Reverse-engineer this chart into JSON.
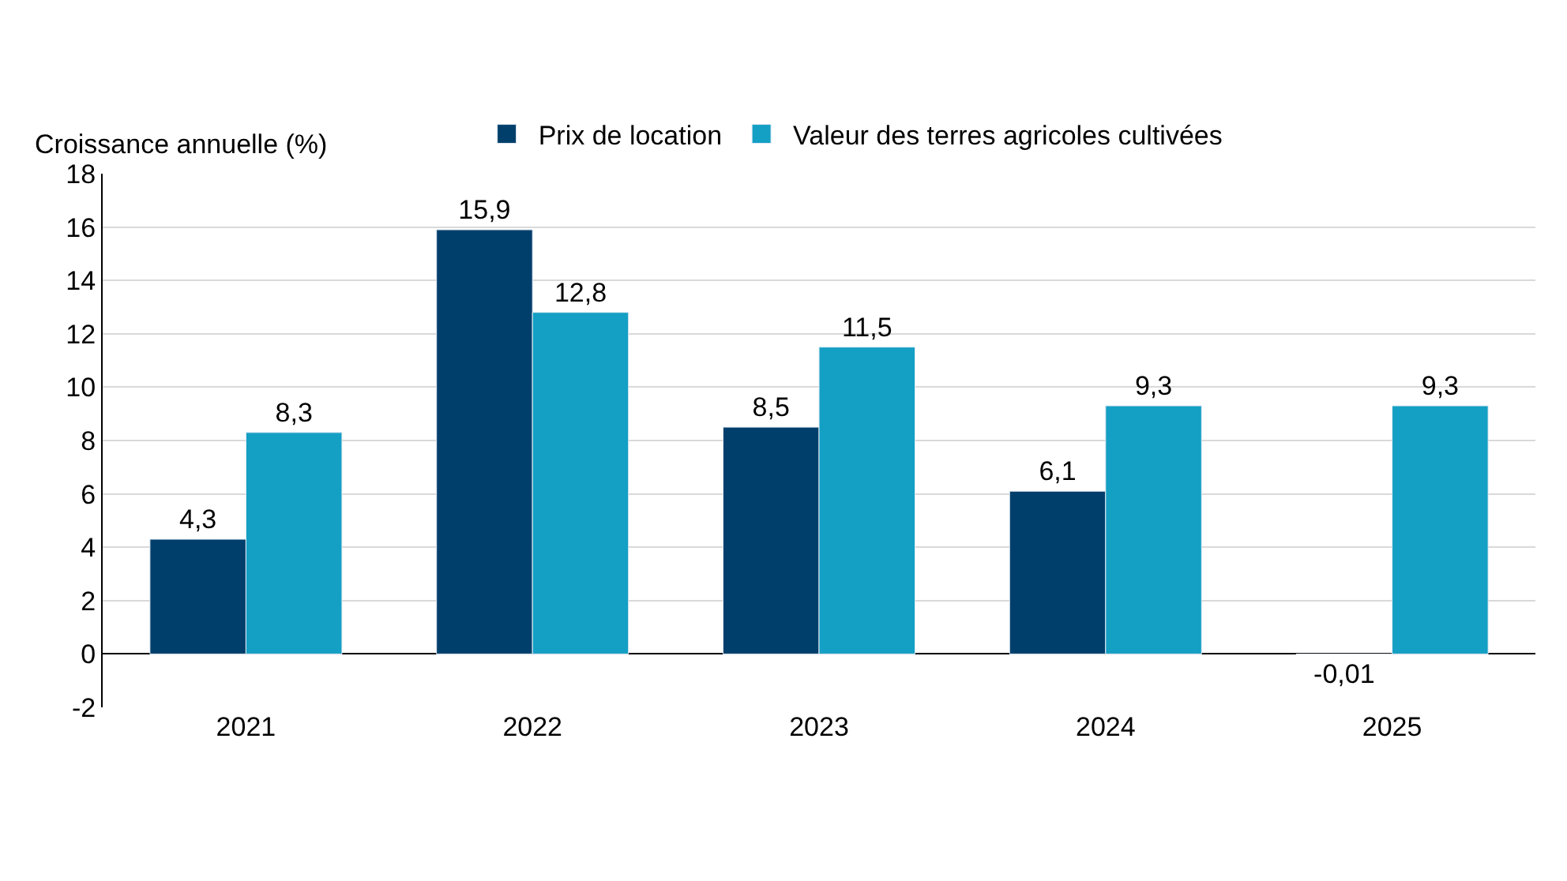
{
  "chart_data": {
    "type": "bar",
    "ylabel": "Croissance annuelle (%)",
    "categories": [
      "2021",
      "2022",
      "2023",
      "2024",
      "2025"
    ],
    "series": [
      {
        "name": "Prix de location",
        "color": "#003f6b",
        "values": [
          4.3,
          15.9,
          8.5,
          6.1,
          -0.01
        ],
        "value_labels": [
          "4,3",
          "15,9",
          "8,5",
          "6,1",
          "-0,01"
        ]
      },
      {
        "name": "Valeur des terres agricoles cultivées",
        "color": "#149fc4",
        "values": [
          8.3,
          12.8,
          11.5,
          9.3,
          9.3
        ],
        "value_labels": [
          "8,3",
          "12,8",
          "11,5",
          "9,3",
          "9,3"
        ]
      }
    ],
    "ylim": [
      -2,
      18
    ],
    "yticks": [
      -2,
      0,
      2,
      4,
      6,
      8,
      10,
      12,
      14,
      16,
      18
    ],
    "grid": "y",
    "legend": "top"
  }
}
